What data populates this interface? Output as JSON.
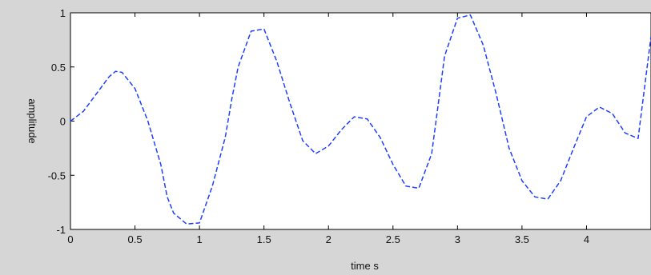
{
  "chart_data": {
    "type": "line",
    "title": "",
    "xlabel": "time s",
    "ylabel": "amplitude",
    "xlim": [
      0,
      4.5
    ],
    "ylim": [
      -1,
      1
    ],
    "grid": false,
    "x_ticks": [
      0,
      0.5,
      1,
      1.5,
      2,
      2.5,
      3,
      3.5,
      4
    ],
    "x_tick_labels": [
      "0",
      "0.5",
      "1",
      "1.5",
      "2",
      "2.5",
      "3",
      "3.5",
      "4"
    ],
    "y_ticks": [
      -1,
      -0.5,
      0,
      0.5,
      1
    ],
    "y_tick_labels": [
      "-1",
      "-0.5",
      "0",
      "0.5",
      "1"
    ],
    "series": [
      {
        "color": "#1f3fff",
        "line_style": "dashed",
        "x": [
          0,
          0.1,
          0.2,
          0.3,
          0.35,
          0.4,
          0.5,
          0.6,
          0.7,
          0.75,
          0.8,
          0.9,
          1.0,
          1.1,
          1.2,
          1.25,
          1.3,
          1.4,
          1.5,
          1.6,
          1.7,
          1.8,
          1.9,
          2.0,
          2.1,
          2.2,
          2.3,
          2.4,
          2.5,
          2.6,
          2.7,
          2.8,
          2.85,
          2.9,
          3.0,
          3.1,
          3.2,
          3.3,
          3.4,
          3.5,
          3.6,
          3.7,
          3.8,
          3.9,
          4.0,
          4.1,
          4.2,
          4.3,
          4.4,
          4.5
        ],
        "y": [
          0.0,
          0.09,
          0.25,
          0.41,
          0.46,
          0.45,
          0.3,
          0.0,
          -0.4,
          -0.7,
          -0.85,
          -0.95,
          -0.94,
          -0.6,
          -0.15,
          0.2,
          0.5,
          0.83,
          0.85,
          0.55,
          0.17,
          -0.18,
          -0.3,
          -0.23,
          -0.08,
          0.04,
          0.02,
          -0.15,
          -0.4,
          -0.6,
          -0.62,
          -0.3,
          0.15,
          0.6,
          0.95,
          0.98,
          0.7,
          0.25,
          -0.25,
          -0.55,
          -0.7,
          -0.72,
          -0.55,
          -0.25,
          0.04,
          0.13,
          0.07,
          -0.11,
          -0.16,
          0.78
        ]
      }
    ]
  }
}
